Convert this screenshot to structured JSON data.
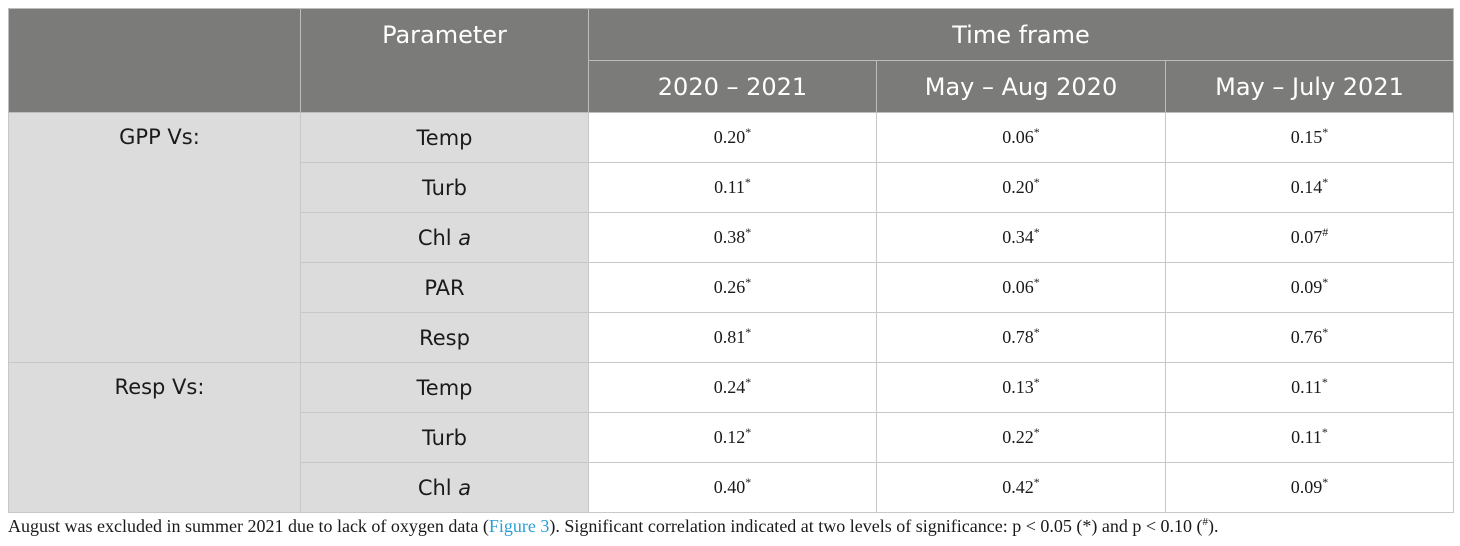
{
  "header": {
    "parameter": "Parameter",
    "time_frame": "Time frame",
    "periods": [
      "2020 – 2021",
      "May – Aug 2020",
      "May – July 2021"
    ]
  },
  "groups": [
    {
      "label": "GPP Vs:",
      "rows": [
        {
          "param": "Temp",
          "param_italic": "",
          "values": [
            "0.20",
            "0.06",
            "0.15"
          ],
          "sig": [
            "*",
            "*",
            "*"
          ]
        },
        {
          "param": "Turb",
          "param_italic": "",
          "values": [
            "0.11",
            "0.20",
            "0.14"
          ],
          "sig": [
            "*",
            "*",
            "*"
          ]
        },
        {
          "param": "Chl ",
          "param_italic": "a",
          "values": [
            "0.38",
            "0.34",
            "0.07"
          ],
          "sig": [
            "*",
            "*",
            "#"
          ]
        },
        {
          "param": "PAR",
          "param_italic": "",
          "values": [
            "0.26",
            "0.06",
            "0.09"
          ],
          "sig": [
            "*",
            "*",
            "*"
          ]
        },
        {
          "param": "Resp",
          "param_italic": "",
          "values": [
            "0.81",
            "0.78",
            "0.76"
          ],
          "sig": [
            "*",
            "*",
            "*"
          ]
        }
      ]
    },
    {
      "label": "Resp Vs:",
      "rows": [
        {
          "param": "Temp",
          "param_italic": "",
          "values": [
            "0.24",
            "0.13",
            "0.11"
          ],
          "sig": [
            "*",
            "*",
            "*"
          ]
        },
        {
          "param": "Turb",
          "param_italic": "",
          "values": [
            "0.12",
            "0.22",
            "0.11"
          ],
          "sig": [
            "*",
            "*",
            "*"
          ]
        },
        {
          "param": "Chl ",
          "param_italic": "a",
          "values": [
            "0.40",
            "0.42",
            "0.09"
          ],
          "sig": [
            "*",
            "*",
            "*"
          ]
        }
      ]
    }
  ],
  "footnote": {
    "text1": "August was excluded in summer 2021 due to lack of oxygen data (",
    "link": "Figure 3",
    "text2": "). Significant correlation indicated at two levels of significance: p < 0.05 (",
    "sym1": "*",
    "text3": ") and p < 0.10 (",
    "sym2": "#",
    "text4": ")."
  }
}
